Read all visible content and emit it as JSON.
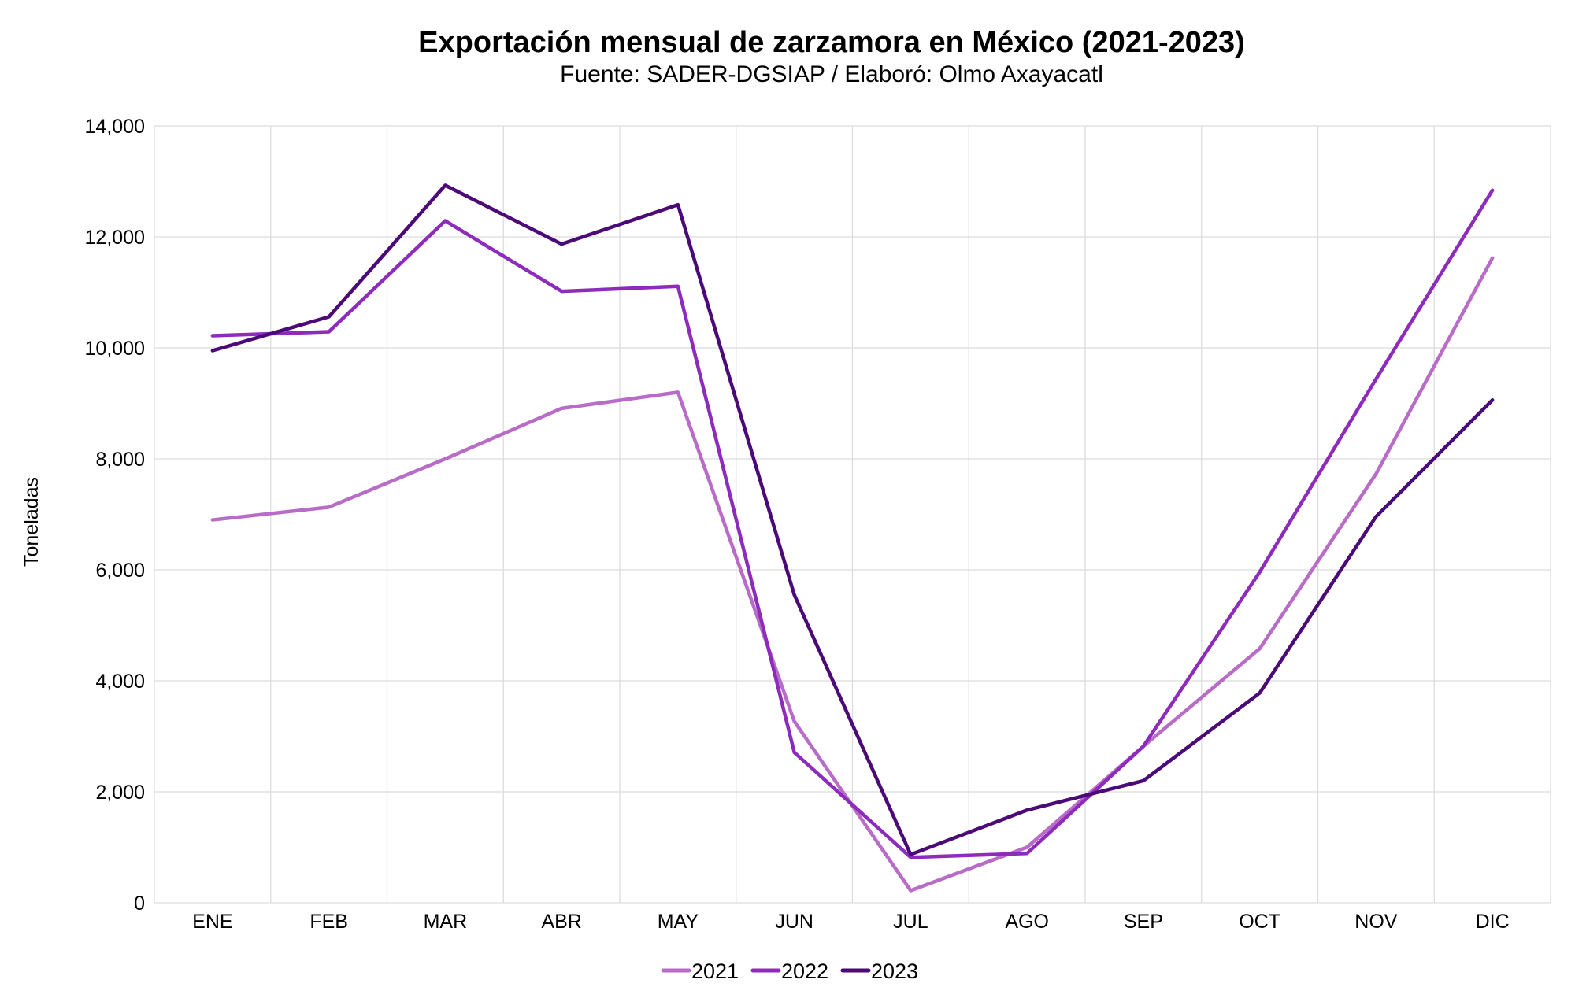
{
  "chart_data": {
    "type": "line",
    "title": "Exportación mensual de zarzamora en México (2021-2023)",
    "subtitle": "Fuente: SADER-DGSIAP / Elaboró: Olmo Axayacatl",
    "xlabel": "",
    "ylabel": "Toneladas",
    "ylim": [
      0,
      14000
    ],
    "yticks": [
      0,
      2000,
      4000,
      6000,
      8000,
      10000,
      12000,
      14000
    ],
    "ytick_labels": [
      "0",
      "2,000",
      "4,000",
      "6,000",
      "8,000",
      "10,000",
      "12,000",
      "14,000"
    ],
    "grid": true,
    "legend_position": "bottom",
    "categories": [
      "ENE",
      "FEB",
      "MAR",
      "ABR",
      "MAY",
      "JUN",
      "JUL",
      "AGO",
      "SEP",
      "OCT",
      "NOV",
      "DIC"
    ],
    "series": [
      {
        "name": "2021",
        "color": "#b86cc8",
        "values": [
          6900,
          7130,
          8000,
          8910,
          9200,
          3270,
          220,
          1000,
          2820,
          4580,
          7730,
          11620
        ]
      },
      {
        "name": "2022",
        "color": "#8e2bbd",
        "values": [
          10220,
          10290,
          12290,
          11020,
          11110,
          2710,
          820,
          890,
          2820,
          5960,
          9440,
          12840
        ]
      },
      {
        "name": "2023",
        "color": "#4b0a78",
        "values": [
          9950,
          10560,
          12930,
          11870,
          12580,
          5550,
          870,
          1670,
          2200,
          3780,
          6960,
          9060
        ]
      }
    ]
  }
}
